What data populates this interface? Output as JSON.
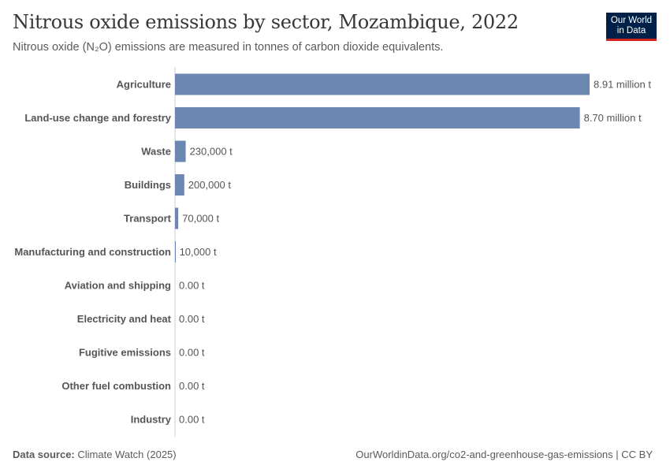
{
  "header": {
    "title": "Nitrous oxide emissions by sector, Mozambique, 2022",
    "subtitle": "Nitrous oxide (N₂O) emissions are measured in tonnes of carbon dioxide equivalents."
  },
  "logo": {
    "line1": "Our World",
    "line2": "in Data"
  },
  "footer": {
    "source_label": "Data source:",
    "source_value": "Climate Watch (2025)",
    "url": "OurWorldinData.org/co2-and-greenhouse-gas-emissions | CC BY"
  },
  "colors": {
    "bar": "#6d87b3",
    "axis": "#cccccc",
    "text": "#555555"
  },
  "chart_data": {
    "type": "bar",
    "orientation": "horizontal",
    "unit": "tonnes CO₂e",
    "categories": [
      "Agriculture",
      "Land-use change and forestry",
      "Waste",
      "Buildings",
      "Transport",
      "Manufacturing and construction",
      "Aviation and shipping",
      "Electricity and heat",
      "Fugitive emissions",
      "Other fuel combustion",
      "Industry"
    ],
    "values": [
      8910000,
      8700000,
      230000,
      200000,
      70000,
      10000,
      0,
      0,
      0,
      0,
      0
    ],
    "value_labels": [
      "8.91 million t",
      "8.70 million t",
      "230,000 t",
      "200,000 t",
      "70,000 t",
      "10,000 t",
      "0.00 t",
      "0.00 t",
      "0.00 t",
      "0.00 t",
      "0.00 t"
    ],
    "xlim": [
      0,
      8910000
    ]
  }
}
